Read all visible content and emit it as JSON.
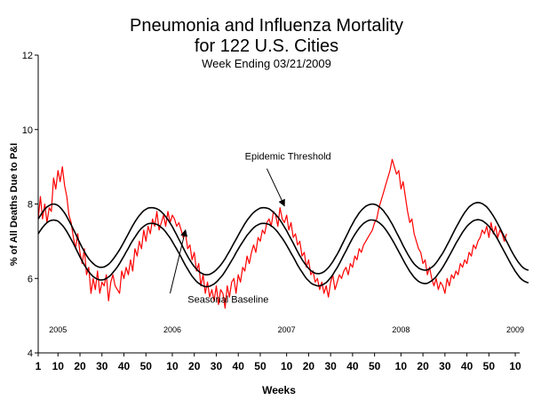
{
  "chart_data": {
    "type": "line",
    "title_lines": [
      "Pneumonia and Influenza Mortality",
      "for 122 U.S. Cities"
    ],
    "subtitle": "Week Ending 03/21/2009",
    "xlabel": "Weeks",
    "ylabel": "% of All Deaths Due to P&I",
    "ylim": [
      4,
      12
    ],
    "yticks": [
      4,
      6,
      8,
      10,
      12
    ],
    "xlim": [
      0,
      219
    ],
    "xticks": [
      {
        "x": 0,
        "label": "1"
      },
      {
        "x": 9,
        "label": "10"
      },
      {
        "x": 19,
        "label": "20"
      },
      {
        "x": 29,
        "label": "30"
      },
      {
        "x": 39,
        "label": "40"
      },
      {
        "x": 49,
        "label": "50"
      },
      {
        "x": 61,
        "label": "10"
      },
      {
        "x": 71,
        "label": "20"
      },
      {
        "x": 81,
        "label": "30"
      },
      {
        "x": 91,
        "label": "40"
      },
      {
        "x": 101,
        "label": "50"
      },
      {
        "x": 113,
        "label": "10"
      },
      {
        "x": 123,
        "label": "20"
      },
      {
        "x": 133,
        "label": "30"
      },
      {
        "x": 143,
        "label": "40"
      },
      {
        "x": 153,
        "label": "50"
      },
      {
        "x": 165,
        "label": "10"
      },
      {
        "x": 175,
        "label": "20"
      },
      {
        "x": 185,
        "label": "30"
      },
      {
        "x": 195,
        "label": "40"
      },
      {
        "x": 205,
        "label": "50"
      },
      {
        "x": 217,
        "label": "10"
      }
    ],
    "year_labels": [
      {
        "x": 9,
        "label": "2005"
      },
      {
        "x": 61,
        "label": "2006"
      },
      {
        "x": 113,
        "label": "2007"
      },
      {
        "x": 165,
        "label": "2008"
      },
      {
        "x": 217,
        "label": "2009"
      }
    ],
    "year_label_y": 4.55,
    "annotations": [
      {
        "text": "Epidemic Threshold",
        "text_x": 94,
        "text_y": 9.2,
        "arrow_from_x": 104,
        "arrow_from_y": 8.95,
        "arrow_to_x": 112,
        "arrow_to_y": 7.95
      },
      {
        "text": "Seasonal Baseline",
        "text_x": 68,
        "text_y": 5.35,
        "arrow_from_x": 60,
        "arrow_from_y": 5.6,
        "arrow_to_x": 67,
        "arrow_to_y": 7.3
      }
    ],
    "series": [
      {
        "color": "#ff0000",
        "x_start": 0,
        "values": [
          7.6,
          8.2,
          7.6,
          8.0,
          7.5,
          7.9,
          7.8,
          8.7,
          8.4,
          8.9,
          8.6,
          9.0,
          8.5,
          8.2,
          7.7,
          7.5,
          7.1,
          6.8,
          7.2,
          6.7,
          6.4,
          6.8,
          6.1,
          6.3,
          5.6,
          6.0,
          5.7,
          6.2,
          5.6,
          5.9,
          5.8,
          6.1,
          5.4,
          5.9,
          6.1,
          5.8,
          5.7,
          5.6,
          6.2,
          6.0,
          6.3,
          6.1,
          6.5,
          6.2,
          6.8,
          6.6,
          7.0,
          6.8,
          7.3,
          7.0,
          7.4,
          7.2,
          7.6,
          7.4,
          7.8,
          7.3,
          7.5,
          7.7,
          7.4,
          7.8,
          7.5,
          7.7,
          7.6,
          7.4,
          7.5,
          7.3,
          7.1,
          7.2,
          6.8,
          6.9,
          6.5,
          6.7,
          6.2,
          6.4,
          5.8,
          6.1,
          5.6,
          5.9,
          5.5,
          5.7,
          5.4,
          5.8,
          5.3,
          5.7,
          5.6,
          5.2,
          5.8,
          5.5,
          5.9,
          6.0,
          5.6,
          6.1,
          5.9,
          6.3,
          6.2,
          6.6,
          6.4,
          6.7,
          6.9,
          6.7,
          7.1,
          7.0,
          7.3,
          7.2,
          7.5,
          7.6,
          7.4,
          7.8,
          7.7,
          7.4,
          7.9,
          7.6,
          7.5,
          7.7,
          7.3,
          7.5,
          7.1,
          7.2,
          6.9,
          7.0,
          6.6,
          6.7,
          6.3,
          6.5,
          6.1,
          6.2,
          5.9,
          6.0,
          5.7,
          5.9,
          5.6,
          5.8,
          5.5,
          5.9,
          6.1,
          5.7,
          5.9,
          6.1,
          6.0,
          6.2,
          6.3,
          6.1,
          6.4,
          6.3,
          6.6,
          6.5,
          6.8,
          6.7,
          6.9,
          7.0,
          7.1,
          7.2,
          7.3,
          7.5,
          7.6,
          7.9,
          8.1,
          8.3,
          8.5,
          8.7,
          8.9,
          9.2,
          9.0,
          8.8,
          8.9,
          8.4,
          8.6,
          8.2,
          7.8,
          7.5,
          7.6,
          7.2,
          7.0,
          6.8,
          6.7,
          6.4,
          6.5,
          6.1,
          6.3,
          6.0,
          5.8,
          6.0,
          5.7,
          5.9,
          5.8,
          5.6,
          6.0,
          5.8,
          6.1,
          6.0,
          6.2,
          6.1,
          6.4,
          6.3,
          6.5,
          6.4,
          6.7,
          6.6,
          6.9,
          6.8,
          7.0,
          7.1,
          7.3,
          7.2,
          7.4,
          7.1,
          7.5,
          7.2,
          7.4,
          7.1,
          7.3,
          7.2,
          7.0,
          7.2
        ]
      },
      {
        "color": "#000000",
        "x_start": 0,
        "values": [
          7.6,
          7.69,
          7.78,
          7.86,
          7.92,
          7.96,
          7.99,
          8.0,
          7.99,
          7.96,
          7.91,
          7.84,
          7.76,
          7.66,
          7.55,
          7.44,
          7.32,
          7.2,
          7.07,
          6.95,
          6.83,
          6.72,
          6.62,
          6.53,
          6.46,
          6.4,
          6.35,
          6.32,
          6.3,
          6.3,
          6.31,
          6.34,
          6.38,
          6.44,
          6.51,
          6.59,
          6.68,
          6.77,
          6.87,
          6.98,
          7.09,
          7.2,
          7.31,
          7.42,
          7.52,
          7.61,
          7.69,
          7.76,
          7.82,
          7.86,
          7.89,
          7.9,
          7.9,
          7.89,
          7.87,
          7.84,
          7.79,
          7.73,
          7.66,
          7.58,
          7.49,
          7.39,
          7.28,
          7.17,
          7.05,
          6.94,
          6.82,
          6.7,
          6.59,
          6.49,
          6.4,
          6.32,
          6.25,
          6.19,
          6.15,
          6.12,
          6.1,
          6.1,
          6.11,
          6.14,
          6.18,
          6.23,
          6.29,
          6.36,
          6.44,
          6.53,
          6.63,
          6.73,
          6.84,
          6.95,
          7.05,
          7.16,
          7.27,
          7.37,
          7.47,
          7.56,
          7.64,
          7.71,
          7.77,
          7.82,
          7.86,
          7.89,
          7.9,
          7.9,
          7.89,
          7.87,
          7.83,
          7.78,
          7.72,
          7.65,
          7.57,
          7.48,
          7.38,
          7.28,
          7.17,
          7.06,
          6.95,
          6.83,
          6.72,
          6.61,
          6.51,
          6.42,
          6.34,
          6.27,
          6.21,
          6.17,
          6.14,
          6.13,
          6.13,
          6.15,
          6.18,
          6.23,
          6.29,
          6.37,
          6.45,
          6.55,
          6.65,
          6.76,
          6.88,
          7.0,
          7.12,
          7.24,
          7.36,
          7.47,
          7.58,
          7.67,
          7.76,
          7.83,
          7.89,
          7.94,
          7.97,
          7.99,
          8.0,
          7.99,
          7.97,
          7.93,
          7.88,
          7.82,
          7.74,
          7.66,
          7.56,
          7.46,
          7.35,
          7.23,
          7.12,
          7.0,
          6.88,
          6.77,
          6.66,
          6.56,
          6.47,
          6.39,
          6.33,
          6.28,
          6.25,
          6.23,
          6.22,
          6.23,
          6.26,
          6.3,
          6.35,
          6.42,
          6.5,
          6.59,
          6.68,
          6.79,
          6.9,
          7.01,
          7.13,
          7.25,
          7.36,
          7.47,
          7.58,
          7.68,
          7.77,
          7.85,
          7.92,
          7.97,
          8.01,
          8.03,
          8.04,
          8.03,
          8.01,
          7.97,
          7.92,
          7.85,
          7.77,
          7.68,
          7.58,
          7.47,
          7.36,
          7.24,
          7.12,
          7.0,
          6.89,
          6.77,
          6.66,
          6.56,
          6.47,
          6.39,
          6.32,
          6.27,
          6.24,
          6.22
        ]
      },
      {
        "color": "#000000",
        "x_start": 0,
        "values": [
          7.2,
          7.29,
          7.37,
          7.44,
          7.5,
          7.54,
          7.56,
          7.57,
          7.56,
          7.54,
          7.49,
          7.43,
          7.35,
          7.26,
          7.16,
          7.05,
          6.94,
          6.82,
          6.7,
          6.58,
          6.47,
          6.36,
          6.27,
          6.18,
          6.11,
          6.05,
          6.01,
          5.98,
          5.96,
          5.96,
          5.97,
          6.0,
          6.04,
          6.09,
          6.16,
          6.23,
          6.31,
          6.4,
          6.5,
          6.6,
          6.71,
          6.81,
          6.92,
          7.02,
          7.11,
          7.2,
          7.28,
          7.35,
          7.4,
          7.44,
          7.47,
          7.48,
          7.48,
          7.47,
          7.45,
          7.42,
          7.37,
          7.32,
          7.25,
          7.17,
          7.09,
          6.99,
          6.89,
          6.79,
          6.68,
          6.57,
          6.46,
          6.35,
          6.25,
          6.15,
          6.06,
          5.99,
          5.92,
          5.87,
          5.83,
          5.8,
          5.78,
          5.78,
          5.79,
          5.82,
          5.85,
          5.9,
          5.96,
          6.03,
          6.1,
          6.19,
          6.28,
          6.38,
          6.48,
          6.58,
          6.69,
          6.79,
          6.89,
          6.98,
          7.07,
          7.16,
          7.23,
          7.3,
          7.36,
          7.41,
          7.44,
          7.47,
          7.48,
          7.48,
          7.47,
          7.45,
          7.41,
          7.37,
          7.31,
          7.24,
          7.16,
          7.08,
          6.99,
          6.89,
          6.79,
          6.68,
          6.58,
          6.47,
          6.36,
          6.26,
          6.17,
          6.08,
          6.0,
          5.94,
          5.88,
          5.84,
          5.82,
          5.8,
          5.8,
          5.82,
          5.85,
          5.89,
          5.95,
          6.02,
          6.1,
          6.2,
          6.29,
          6.4,
          6.51,
          6.63,
          6.74,
          6.86,
          6.97,
          7.08,
          7.18,
          7.27,
          7.35,
          7.42,
          7.48,
          7.52,
          7.55,
          7.57,
          7.57,
          7.56,
          7.54,
          7.5,
          7.45,
          7.39,
          7.32,
          7.23,
          7.14,
          7.04,
          6.94,
          6.83,
          6.72,
          6.61,
          6.5,
          6.39,
          6.29,
          6.19,
          6.11,
          6.03,
          5.97,
          5.92,
          5.89,
          5.87,
          5.86,
          5.87,
          5.9,
          5.94,
          5.99,
          6.05,
          6.13,
          6.21,
          6.3,
          6.4,
          6.5,
          6.61,
          6.72,
          6.83,
          6.94,
          7.04,
          7.14,
          7.24,
          7.32,
          7.4,
          7.46,
          7.51,
          7.55,
          7.57,
          7.58,
          7.57,
          7.55,
          7.51,
          7.46,
          7.4,
          7.33,
          7.24,
          7.15,
          7.05,
          6.94,
          6.83,
          6.72,
          6.61,
          6.5,
          6.39,
          6.29,
          6.19,
          6.11,
          6.03,
          5.97,
          5.93,
          5.9,
          5.88
        ]
      }
    ]
  }
}
